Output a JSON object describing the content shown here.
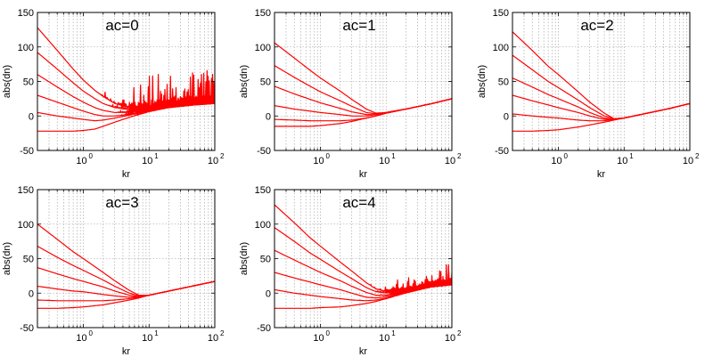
{
  "chart_data": [
    {
      "type": "line",
      "title": "ac=0",
      "xlabel": "kr",
      "ylabel": "abs(dn)",
      "xscale": "log",
      "xlim": [
        0.2,
        100
      ],
      "ylim": [
        -50,
        150
      ],
      "grid": true,
      "xticks": [
        1,
        10,
        100
      ],
      "xticklabels": [
        "10",
        "10",
        "10"
      ],
      "xtickexps": [
        "0",
        "1",
        "2"
      ],
      "yticks": [
        -50,
        0,
        50,
        100,
        150
      ],
      "yticklabels": [
        "-50",
        "0",
        "50",
        "100",
        "150"
      ],
      "color": "#ff0000",
      "oscillating_tail": true,
      "series": [
        {
          "x": [
            0.2,
            0.4,
            0.7,
            1,
            1.5,
            2,
            3,
            5,
            10,
            20,
            50,
            100
          ],
          "y": [
            128,
            95,
            68,
            52,
            37,
            28,
            18,
            12,
            10,
            13,
            16,
            18
          ]
        },
        {
          "x": [
            0.2,
            0.4,
            0.7,
            1,
            1.5,
            2,
            3,
            5,
            10,
            20,
            50,
            100
          ],
          "y": [
            92,
            68,
            48,
            36,
            25,
            18,
            12,
            9,
            9,
            13,
            16,
            18
          ]
        },
        {
          "x": [
            0.2,
            0.4,
            0.7,
            1,
            1.5,
            2,
            3,
            5,
            10,
            20,
            50,
            100
          ],
          "y": [
            60,
            42,
            28,
            20,
            12,
            8,
            5,
            5,
            8,
            12,
            16,
            18
          ]
        },
        {
          "x": [
            0.2,
            0.4,
            0.7,
            1,
            1.5,
            2,
            3,
            5,
            10,
            20,
            50,
            100
          ],
          "y": [
            30,
            20,
            12,
            7,
            2,
            0,
            0,
            2,
            7,
            12,
            16,
            18
          ]
        },
        {
          "x": [
            0.2,
            0.4,
            0.7,
            1,
            1.5,
            2,
            3,
            5,
            10,
            20,
            50,
            100
          ],
          "y": [
            5,
            0,
            -3,
            -5,
            -7,
            -6,
            -3,
            1,
            7,
            12,
            16,
            18
          ]
        },
        {
          "x": [
            0.2,
            0.4,
            0.7,
            1,
            1.5,
            2,
            3,
            5,
            10,
            20,
            50,
            100
          ],
          "y": [
            -22,
            -22,
            -22,
            -21,
            -19,
            -15,
            -9,
            -2,
            6,
            12,
            16,
            18
          ]
        }
      ]
    },
    {
      "type": "line",
      "title": "ac=1",
      "xlabel": "kr",
      "ylabel": "abs(dn)",
      "xscale": "log",
      "xlim": [
        0.2,
        100
      ],
      "ylim": [
        -50,
        150
      ],
      "grid": true,
      "xticks": [
        1,
        10,
        100
      ],
      "xticklabels": [
        "10",
        "10",
        "10"
      ],
      "xtickexps": [
        "0",
        "1",
        "2"
      ],
      "yticks": [
        -50,
        0,
        50,
        100,
        150
      ],
      "yticklabels": [
        "-50",
        "0",
        "50",
        "100",
        "150"
      ],
      "color": "#ff0000",
      "oscillating_tail": false,
      "series": [
        {
          "x": [
            0.2,
            0.4,
            0.7,
            1,
            2,
            3,
            5,
            7,
            10,
            20,
            50,
            100
          ],
          "y": [
            106,
            84,
            66,
            55,
            36,
            24,
            10,
            4,
            5,
            10,
            18,
            25
          ]
        },
        {
          "x": [
            0.2,
            0.4,
            0.7,
            1,
            2,
            3,
            5,
            7,
            10,
            20,
            50,
            100
          ],
          "y": [
            73,
            56,
            43,
            35,
            22,
            14,
            5,
            3,
            5,
            10,
            18,
            25
          ]
        },
        {
          "x": [
            0.2,
            0.4,
            0.7,
            1,
            2,
            3,
            5,
            7,
            10,
            20,
            50,
            100
          ],
          "y": [
            43,
            32,
            24,
            19,
            11,
            6,
            2,
            2,
            5,
            10,
            18,
            25
          ]
        },
        {
          "x": [
            0.2,
            0.4,
            0.7,
            1,
            2,
            3,
            5,
            7,
            10,
            20,
            50,
            100
          ],
          "y": [
            15,
            10,
            7,
            5,
            2,
            0,
            0,
            2,
            5,
            10,
            18,
            25
          ]
        },
        {
          "x": [
            0.2,
            0.4,
            0.7,
            1,
            2,
            3,
            5,
            7,
            10,
            20,
            50,
            100
          ],
          "y": [
            -5,
            -6,
            -7,
            -7,
            -7,
            -6,
            -3,
            0,
            4,
            10,
            18,
            25
          ]
        },
        {
          "x": [
            0.2,
            0.4,
            0.7,
            1,
            2,
            3,
            5,
            7,
            10,
            20,
            50,
            100
          ],
          "y": [
            -15,
            -15,
            -15,
            -14,
            -11,
            -8,
            -3,
            0,
            4,
            10,
            18,
            25
          ]
        }
      ]
    },
    {
      "type": "line",
      "title": "ac=2",
      "xlabel": "kr",
      "ylabel": "abs(dn)",
      "xscale": "log",
      "xlim": [
        0.2,
        100
      ],
      "ylim": [
        -50,
        150
      ],
      "grid": true,
      "xticks": [
        1,
        10,
        100
      ],
      "xticklabels": [
        "10",
        "10",
        "10"
      ],
      "xtickexps": [
        "0",
        "1",
        "2"
      ],
      "yticks": [
        -50,
        0,
        50,
        100,
        150
      ],
      "yticklabels": [
        "-50",
        "0",
        "50",
        "100",
        "150"
      ],
      "color": "#ff0000",
      "oscillating_tail": false,
      "series": [
        {
          "x": [
            0.2,
            0.4,
            0.7,
            1,
            2,
            3,
            5,
            7,
            10,
            20,
            50,
            100
          ],
          "y": [
            122,
            95,
            72,
            60,
            35,
            20,
            4,
            -4,
            -3,
            3,
            11,
            18
          ]
        },
        {
          "x": [
            0.2,
            0.4,
            0.7,
            1,
            2,
            3,
            5,
            7,
            10,
            20,
            50,
            100
          ],
          "y": [
            88,
            67,
            50,
            41,
            23,
            12,
            0,
            -4,
            -3,
            3,
            11,
            18
          ]
        },
        {
          "x": [
            0.2,
            0.4,
            0.7,
            1,
            2,
            3,
            5,
            7,
            10,
            20,
            50,
            100
          ],
          "y": [
            55,
            42,
            31,
            25,
            13,
            5,
            -3,
            -5,
            -3,
            3,
            11,
            18
          ]
        },
        {
          "x": [
            0.2,
            0.4,
            0.7,
            1,
            2,
            3,
            5,
            7,
            10,
            20,
            50,
            100
          ],
          "y": [
            30,
            22,
            16,
            12,
            5,
            0,
            -5,
            -5,
            -3,
            3,
            11,
            18
          ]
        },
        {
          "x": [
            0.2,
            0.4,
            0.7,
            1,
            2,
            3,
            5,
            7,
            10,
            20,
            50,
            100
          ],
          "y": [
            3,
            0,
            -2,
            -3,
            -6,
            -7,
            -7,
            -5,
            -3,
            3,
            11,
            18
          ]
        },
        {
          "x": [
            0.2,
            0.4,
            0.7,
            1,
            2,
            3,
            5,
            7,
            10,
            20,
            50,
            100
          ],
          "y": [
            -22,
            -22,
            -21,
            -20,
            -16,
            -13,
            -9,
            -6,
            -3,
            3,
            11,
            18
          ]
        }
      ]
    },
    {
      "type": "line",
      "title": "ac=3",
      "xlabel": "kr",
      "ylabel": "abs(dn)",
      "xscale": "log",
      "xlim": [
        0.2,
        100
      ],
      "ylim": [
        -50,
        150
      ],
      "grid": true,
      "xticks": [
        1,
        10,
        100
      ],
      "xticklabels": [
        "10",
        "10",
        "10"
      ],
      "xtickexps": [
        "0",
        "1",
        "2"
      ],
      "yticks": [
        -50,
        0,
        50,
        100,
        150
      ],
      "yticklabels": [
        "-50",
        "0",
        "50",
        "100",
        "150"
      ],
      "color": "#ff0000",
      "oscillating_tail": false,
      "series": [
        {
          "x": [
            0.2,
            0.4,
            0.7,
            1,
            2,
            3,
            5,
            7,
            10,
            20,
            50,
            100
          ],
          "y": [
            100,
            78,
            60,
            50,
            30,
            18,
            4,
            -3,
            -3,
            3,
            11,
            17
          ]
        },
        {
          "x": [
            0.2,
            0.4,
            0.7,
            1,
            2,
            3,
            5,
            7,
            10,
            20,
            50,
            100
          ],
          "y": [
            68,
            52,
            40,
            33,
            19,
            10,
            0,
            -4,
            -3,
            3,
            11,
            17
          ]
        },
        {
          "x": [
            0.2,
            0.4,
            0.7,
            1,
            2,
            3,
            5,
            7,
            10,
            20,
            50,
            100
          ],
          "y": [
            37,
            28,
            21,
            17,
            9,
            3,
            -3,
            -5,
            -3,
            3,
            11,
            17
          ]
        },
        {
          "x": [
            0.2,
            0.4,
            0.7,
            1,
            2,
            3,
            5,
            7,
            10,
            20,
            50,
            100
          ],
          "y": [
            10,
            6,
            3,
            2,
            -2,
            -4,
            -6,
            -5,
            -3,
            3,
            11,
            17
          ]
        },
        {
          "x": [
            0.2,
            0.4,
            0.7,
            1,
            2,
            3,
            5,
            7,
            10,
            20,
            50,
            100
          ],
          "y": [
            -10,
            -11,
            -11,
            -11,
            -11,
            -10,
            -8,
            -6,
            -3,
            3,
            11,
            17
          ]
        },
        {
          "x": [
            0.2,
            0.4,
            0.7,
            1,
            2,
            3,
            5,
            7,
            10,
            20,
            50,
            100
          ],
          "y": [
            -22,
            -22,
            -21,
            -20,
            -17,
            -14,
            -10,
            -7,
            -3,
            3,
            11,
            17
          ]
        }
      ]
    },
    {
      "type": "line",
      "title": "ac=4",
      "xlabel": "kr",
      "ylabel": "abs(dn)",
      "xscale": "log",
      "xlim": [
        0.2,
        100
      ],
      "ylim": [
        -50,
        150
      ],
      "grid": true,
      "xticks": [
        1,
        10,
        100
      ],
      "xticklabels": [
        "10",
        "10",
        "10"
      ],
      "xtickexps": [
        "0",
        "1",
        "2"
      ],
      "yticks": [
        -50,
        0,
        50,
        100,
        150
      ],
      "yticklabels": [
        "-50",
        "0",
        "50",
        "100",
        "150"
      ],
      "color": "#ff0000",
      "oscillating_tail": true,
      "series": [
        {
          "x": [
            0.2,
            0.4,
            0.7,
            1,
            2,
            3,
            5,
            7,
            10,
            20,
            50,
            100
          ],
          "y": [
            128,
            102,
            80,
            68,
            45,
            32,
            15,
            6,
            2,
            5,
            9,
            12
          ]
        },
        {
          "x": [
            0.2,
            0.4,
            0.7,
            1,
            2,
            3,
            5,
            7,
            10,
            20,
            50,
            100
          ],
          "y": [
            95,
            75,
            58,
            49,
            31,
            21,
            8,
            2,
            0,
            4,
            9,
            12
          ]
        },
        {
          "x": [
            0.2,
            0.4,
            0.7,
            1,
            2,
            3,
            5,
            7,
            10,
            20,
            50,
            100
          ],
          "y": [
            62,
            48,
            37,
            30,
            18,
            10,
            1,
            -3,
            -3,
            3,
            9,
            12
          ]
        },
        {
          "x": [
            0.2,
            0.4,
            0.7,
            1,
            2,
            3,
            5,
            7,
            10,
            20,
            50,
            100
          ],
          "y": [
            30,
            22,
            16,
            12,
            5,
            0,
            -6,
            -7,
            -5,
            2,
            9,
            12
          ]
        },
        {
          "x": [
            0.2,
            0.4,
            0.7,
            1,
            2,
            3,
            5,
            7,
            10,
            20,
            50,
            100
          ],
          "y": [
            5,
            0,
            -3,
            -5,
            -8,
            -10,
            -11,
            -10,
            -7,
            1,
            9,
            12
          ]
        },
        {
          "x": [
            0.2,
            0.4,
            0.7,
            1,
            2,
            3,
            5,
            7,
            10,
            20,
            50,
            100
          ],
          "y": [
            -22,
            -22,
            -22,
            -21,
            -20,
            -18,
            -15,
            -12,
            -8,
            0,
            9,
            12
          ]
        }
      ]
    }
  ]
}
